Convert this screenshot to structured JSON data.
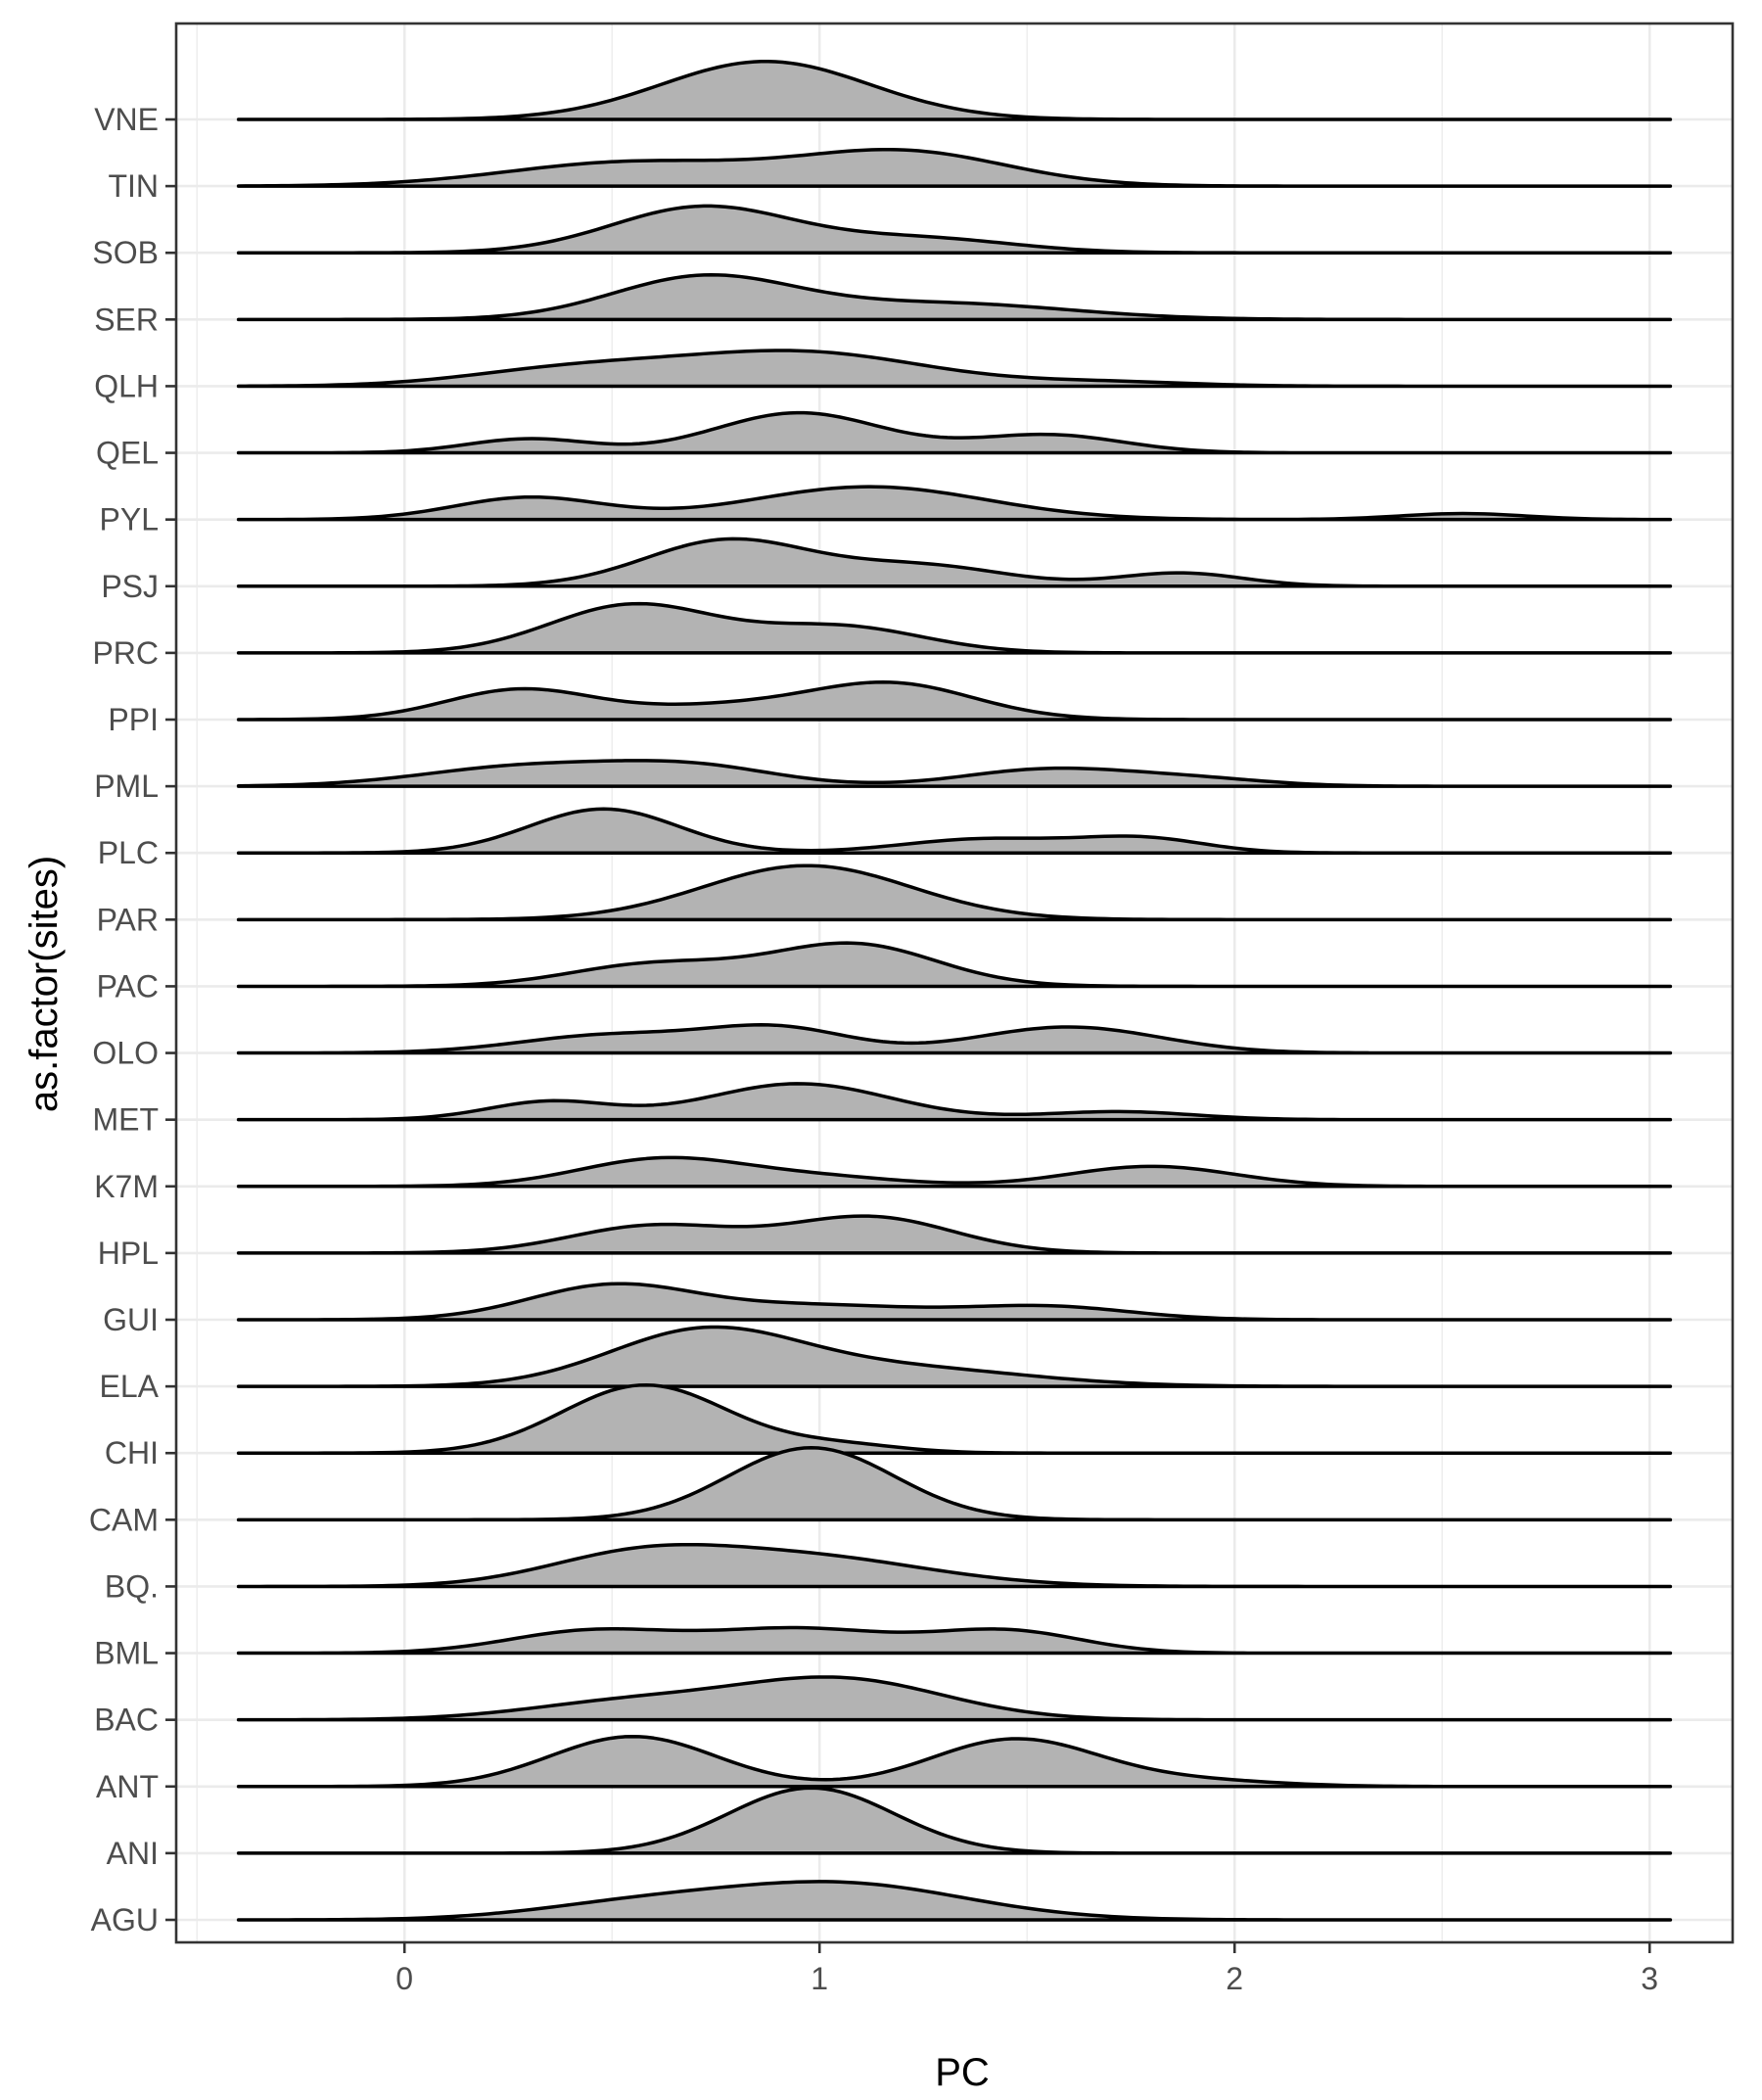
{
  "chart_data": {
    "type": "ridgeline",
    "xlabel": "PC",
    "ylabel": "as.factor(sites)",
    "xlim": [
      -0.55,
      3.2
    ],
    "density_support": [
      -0.4,
      3.05
    ],
    "x_ticks": [
      0,
      1,
      2,
      3
    ],
    "x_tick_labels": [
      "0",
      "1",
      "2",
      "3"
    ],
    "grid": "major and minor, light gray",
    "fill_color": "#b3b3b3",
    "line_color": "#000000",
    "categories": [
      "AGU",
      "ANI",
      "ANT",
      "BAC",
      "BML",
      "BQ.",
      "CAM",
      "CHI",
      "ELA",
      "GUI",
      "HPL",
      "K7M",
      "MET",
      "OLO",
      "PAC",
      "PAR",
      "PLC",
      "PML",
      "PPI",
      "PRC",
      "PSJ",
      "PYL",
      "QEL",
      "QLH",
      "SER",
      "SOB",
      "TIN",
      "VNE"
    ],
    "series": [
      {
        "name": "AGU",
        "components": [
          {
            "mu": 0.55,
            "sd": 0.25,
            "h": 0.35
          },
          {
            "mu": 1.05,
            "sd": 0.3,
            "h": 0.9
          }
        ]
      },
      {
        "name": "ANI",
        "components": [
          {
            "mu": 0.98,
            "sd": 0.2,
            "h": 1.63
          }
        ]
      },
      {
        "name": "ANT",
        "components": [
          {
            "mu": 0.55,
            "sd": 0.2,
            "h": 1.25
          },
          {
            "mu": 1.47,
            "sd": 0.2,
            "h": 1.18
          },
          {
            "mu": 1.9,
            "sd": 0.2,
            "h": 0.15
          }
        ]
      },
      {
        "name": "BAC",
        "components": [
          {
            "mu": 0.55,
            "sd": 0.25,
            "h": 0.45
          },
          {
            "mu": 1.05,
            "sd": 0.25,
            "h": 1.0
          }
        ]
      },
      {
        "name": "BML",
        "components": [
          {
            "mu": 0.45,
            "sd": 0.2,
            "h": 0.55
          },
          {
            "mu": 0.95,
            "sd": 0.22,
            "h": 0.6
          },
          {
            "mu": 1.45,
            "sd": 0.18,
            "h": 0.55
          }
        ]
      },
      {
        "name": "BQ.",
        "components": [
          {
            "mu": 0.55,
            "sd": 0.22,
            "h": 0.65
          },
          {
            "mu": 0.95,
            "sd": 0.3,
            "h": 0.75
          }
        ]
      },
      {
        "name": "CAM",
        "components": [
          {
            "mu": 0.98,
            "sd": 0.2,
            "h": 1.8
          }
        ]
      },
      {
        "name": "CHI",
        "components": [
          {
            "mu": 0.58,
            "sd": 0.2,
            "h": 1.7
          },
          {
            "mu": 1.05,
            "sd": 0.15,
            "h": 0.2
          }
        ]
      },
      {
        "name": "ELA",
        "components": [
          {
            "mu": 0.72,
            "sd": 0.23,
            "h": 1.35
          },
          {
            "mu": 1.2,
            "sd": 0.3,
            "h": 0.45
          }
        ]
      },
      {
        "name": "GUI",
        "components": [
          {
            "mu": 0.5,
            "sd": 0.2,
            "h": 0.85
          },
          {
            "mu": 1.0,
            "sd": 0.25,
            "h": 0.35
          },
          {
            "mu": 1.55,
            "sd": 0.2,
            "h": 0.32
          }
        ]
      },
      {
        "name": "HPL",
        "components": [
          {
            "mu": 0.6,
            "sd": 0.2,
            "h": 0.68
          },
          {
            "mu": 1.12,
            "sd": 0.2,
            "h": 0.9
          }
        ]
      },
      {
        "name": "K7M",
        "components": [
          {
            "mu": 0.62,
            "sd": 0.2,
            "h": 0.68
          },
          {
            "mu": 1.0,
            "sd": 0.2,
            "h": 0.22
          },
          {
            "mu": 1.8,
            "sd": 0.2,
            "h": 0.5
          }
        ]
      },
      {
        "name": "MET",
        "components": [
          {
            "mu": 0.35,
            "sd": 0.15,
            "h": 0.45
          },
          {
            "mu": 0.95,
            "sd": 0.22,
            "h": 0.9
          },
          {
            "mu": 1.72,
            "sd": 0.18,
            "h": 0.2
          }
        ]
      },
      {
        "name": "OLO",
        "components": [
          {
            "mu": 0.5,
            "sd": 0.22,
            "h": 0.45
          },
          {
            "mu": 0.9,
            "sd": 0.17,
            "h": 0.6
          },
          {
            "mu": 1.6,
            "sd": 0.22,
            "h": 0.65
          }
        ]
      },
      {
        "name": "PAC",
        "components": [
          {
            "mu": 0.6,
            "sd": 0.2,
            "h": 0.55
          },
          {
            "mu": 1.08,
            "sd": 0.2,
            "h": 1.05
          }
        ]
      },
      {
        "name": "PAR",
        "components": [
          {
            "mu": 0.97,
            "sd": 0.25,
            "h": 1.35
          }
        ]
      },
      {
        "name": "PLC",
        "components": [
          {
            "mu": 0.48,
            "sd": 0.18,
            "h": 1.1
          },
          {
            "mu": 1.4,
            "sd": 0.2,
            "h": 0.35
          },
          {
            "mu": 1.78,
            "sd": 0.15,
            "h": 0.35
          }
        ]
      },
      {
        "name": "PML",
        "components": [
          {
            "mu": 0.3,
            "sd": 0.25,
            "h": 0.5
          },
          {
            "mu": 0.7,
            "sd": 0.2,
            "h": 0.45
          },
          {
            "mu": 1.55,
            "sd": 0.2,
            "h": 0.42
          },
          {
            "mu": 1.9,
            "sd": 0.18,
            "h": 0.18
          }
        ]
      },
      {
        "name": "PPI",
        "components": [
          {
            "mu": 0.28,
            "sd": 0.18,
            "h": 0.75
          },
          {
            "mu": 0.75,
            "sd": 0.2,
            "h": 0.3
          },
          {
            "mu": 1.17,
            "sd": 0.2,
            "h": 0.9
          }
        ]
      },
      {
        "name": "PRC",
        "components": [
          {
            "mu": 0.55,
            "sd": 0.2,
            "h": 1.2
          },
          {
            "mu": 1.05,
            "sd": 0.2,
            "h": 0.65
          }
        ]
      },
      {
        "name": "PSJ",
        "components": [
          {
            "mu": 0.78,
            "sd": 0.2,
            "h": 1.15
          },
          {
            "mu": 1.25,
            "sd": 0.2,
            "h": 0.5
          },
          {
            "mu": 1.87,
            "sd": 0.15,
            "h": 0.33
          }
        ]
      },
      {
        "name": "PYL",
        "components": [
          {
            "mu": 0.3,
            "sd": 0.18,
            "h": 0.55
          },
          {
            "mu": 1.12,
            "sd": 0.28,
            "h": 0.82
          },
          {
            "mu": 2.55,
            "sd": 0.15,
            "h": 0.15
          }
        ]
      },
      {
        "name": "QEL",
        "components": [
          {
            "mu": 0.3,
            "sd": 0.15,
            "h": 0.35
          },
          {
            "mu": 0.95,
            "sd": 0.2,
            "h": 1.0
          },
          {
            "mu": 1.55,
            "sd": 0.18,
            "h": 0.45
          }
        ]
      },
      {
        "name": "QLH",
        "components": [
          {
            "mu": 0.4,
            "sd": 0.25,
            "h": 0.4
          },
          {
            "mu": 0.95,
            "sd": 0.3,
            "h": 0.85
          },
          {
            "mu": 1.7,
            "sd": 0.2,
            "h": 0.1
          }
        ]
      },
      {
        "name": "SER",
        "components": [
          {
            "mu": 0.72,
            "sd": 0.22,
            "h": 1.05
          },
          {
            "mu": 1.3,
            "sd": 0.3,
            "h": 0.4
          }
        ]
      },
      {
        "name": "SOB",
        "components": [
          {
            "mu": 0.72,
            "sd": 0.22,
            "h": 1.15
          },
          {
            "mu": 1.25,
            "sd": 0.22,
            "h": 0.35
          }
        ]
      },
      {
        "name": "TIN",
        "components": [
          {
            "mu": 0.55,
            "sd": 0.3,
            "h": 0.6
          },
          {
            "mu": 1.2,
            "sd": 0.25,
            "h": 0.85
          }
        ]
      },
      {
        "name": "VNE",
        "components": [
          {
            "mu": 0.87,
            "sd": 0.25,
            "h": 1.45
          }
        ]
      }
    ]
  }
}
